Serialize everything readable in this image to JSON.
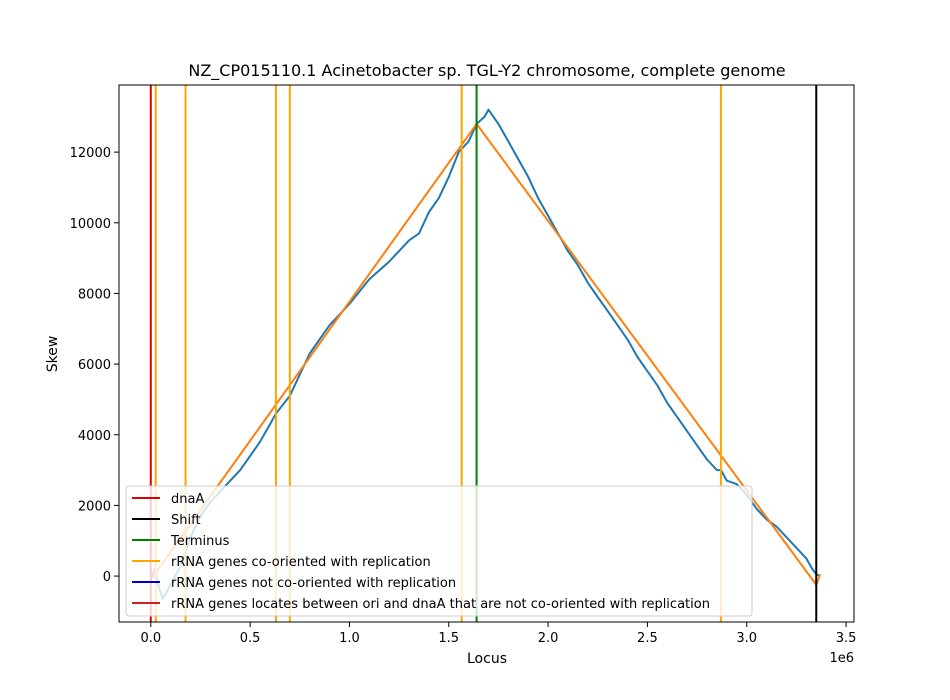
{
  "chart_data": {
    "type": "line",
    "title": "NZ_CP015110.1 Acinetobacter sp. TGL-Y2 chromosome, complete genome",
    "xlabel": "Locus",
    "ylabel": "Skew",
    "x_offset_label": "1e6",
    "xlim": [
      -160000,
      3540000
    ],
    "ylim": [
      -1300,
      13900
    ],
    "x_ticks": [
      0,
      500000,
      1000000,
      1500000,
      2000000,
      2500000,
      3000000,
      3500000
    ],
    "x_tick_labels": [
      "0.0",
      "0.5",
      "1.0",
      "1.5",
      "2.0",
      "2.5",
      "3.0",
      "3.5"
    ],
    "y_ticks": [
      0,
      2000,
      4000,
      6000,
      8000,
      10000,
      12000
    ],
    "y_tick_labels": [
      "0",
      "2000",
      "4000",
      "6000",
      "8000",
      "10000",
      "12000"
    ],
    "grid": false,
    "legend_position": "lower-left",
    "series": [
      {
        "name": "",
        "color": "#1f77b4",
        "x": [
          0,
          20000,
          40000,
          60000,
          80000,
          100000,
          150000,
          200000,
          250000,
          300000,
          350000,
          400000,
          450000,
          500000,
          550000,
          600000,
          630000,
          700000,
          800000,
          900000,
          1000000,
          1100000,
          1200000,
          1300000,
          1350000,
          1400000,
          1450000,
          1500000,
          1550000,
          1600000,
          1640000,
          1680000,
          1700000,
          1750000,
          1800000,
          1850000,
          1900000,
          1950000,
          2000000,
          2050000,
          2100000,
          2150000,
          2200000,
          2250000,
          2300000,
          2350000,
          2400000,
          2450000,
          2500000,
          2550000,
          2600000,
          2650000,
          2700000,
          2750000,
          2800000,
          2850000,
          2870000,
          2900000,
          2950000,
          3000000,
          3050000,
          3100000,
          3150000,
          3200000,
          3250000,
          3300000,
          3330000,
          3350000,
          3370000
        ],
        "y": [
          -100,
          200,
          -300,
          -650,
          -450,
          -250,
          300,
          1100,
          1700,
          2100,
          2400,
          2700,
          3000,
          3400,
          3800,
          4300,
          4600,
          5100,
          6300,
          7100,
          7700,
          8400,
          8900,
          9500,
          9700,
          10300,
          10700,
          11300,
          12000,
          12300,
          12800,
          13000,
          13200,
          12800,
          12300,
          11800,
          11300,
          10700,
          10200,
          9700,
          9200,
          8800,
          8300,
          7900,
          7500,
          7100,
          6700,
          6200,
          5800,
          5400,
          4900,
          4500,
          4100,
          3700,
          3300,
          3000,
          3000,
          2700,
          2600,
          2300,
          1900,
          1600,
          1400,
          1100,
          800,
          500,
          200,
          50,
          0
        ]
      },
      {
        "name": "",
        "color": "#ff7f0e",
        "x": [
          0,
          1640000,
          3350000,
          3370000
        ],
        "y": [
          -100,
          12800,
          -250,
          50
        ]
      }
    ],
    "vlines": [
      {
        "name": "dnaA",
        "x": 0,
        "color": "#dd0000"
      },
      {
        "name": "Shift",
        "x": 3350000,
        "color": "#000000"
      },
      {
        "name": "Terminus",
        "x": 1640000,
        "color": "#008000"
      },
      {
        "name": "rRNA genes co-oriented with replication",
        "x": 25000,
        "color": "#ffa500"
      },
      {
        "name": "rRNA genes co-oriented with replication",
        "x": 175000,
        "color": "#ffa500"
      },
      {
        "name": "rRNA genes co-oriented with replication",
        "x": 630000,
        "color": "#ffa500"
      },
      {
        "name": "rRNA genes co-oriented with replication",
        "x": 700000,
        "color": "#ffa500"
      },
      {
        "name": "rRNA genes co-oriented with replication",
        "x": 1565000,
        "color": "#ffa500"
      },
      {
        "name": "rRNA genes co-oriented with replication",
        "x": 2870000,
        "color": "#ffa500"
      }
    ],
    "legend": [
      {
        "label": "dnaA",
        "color": "#dd0000"
      },
      {
        "label": "Shift",
        "color": "#000000"
      },
      {
        "label": "Terminus",
        "color": "#008000"
      },
      {
        "label": "rRNA genes co-oriented with replication",
        "color": "#ffa500"
      },
      {
        "label": "rRNA genes not co-oriented with replication",
        "color": "#0000cc"
      },
      {
        "label": "rRNA genes locates between ori and dnaA that are not co-oriented with replication",
        "color": "#cc2222"
      }
    ]
  }
}
